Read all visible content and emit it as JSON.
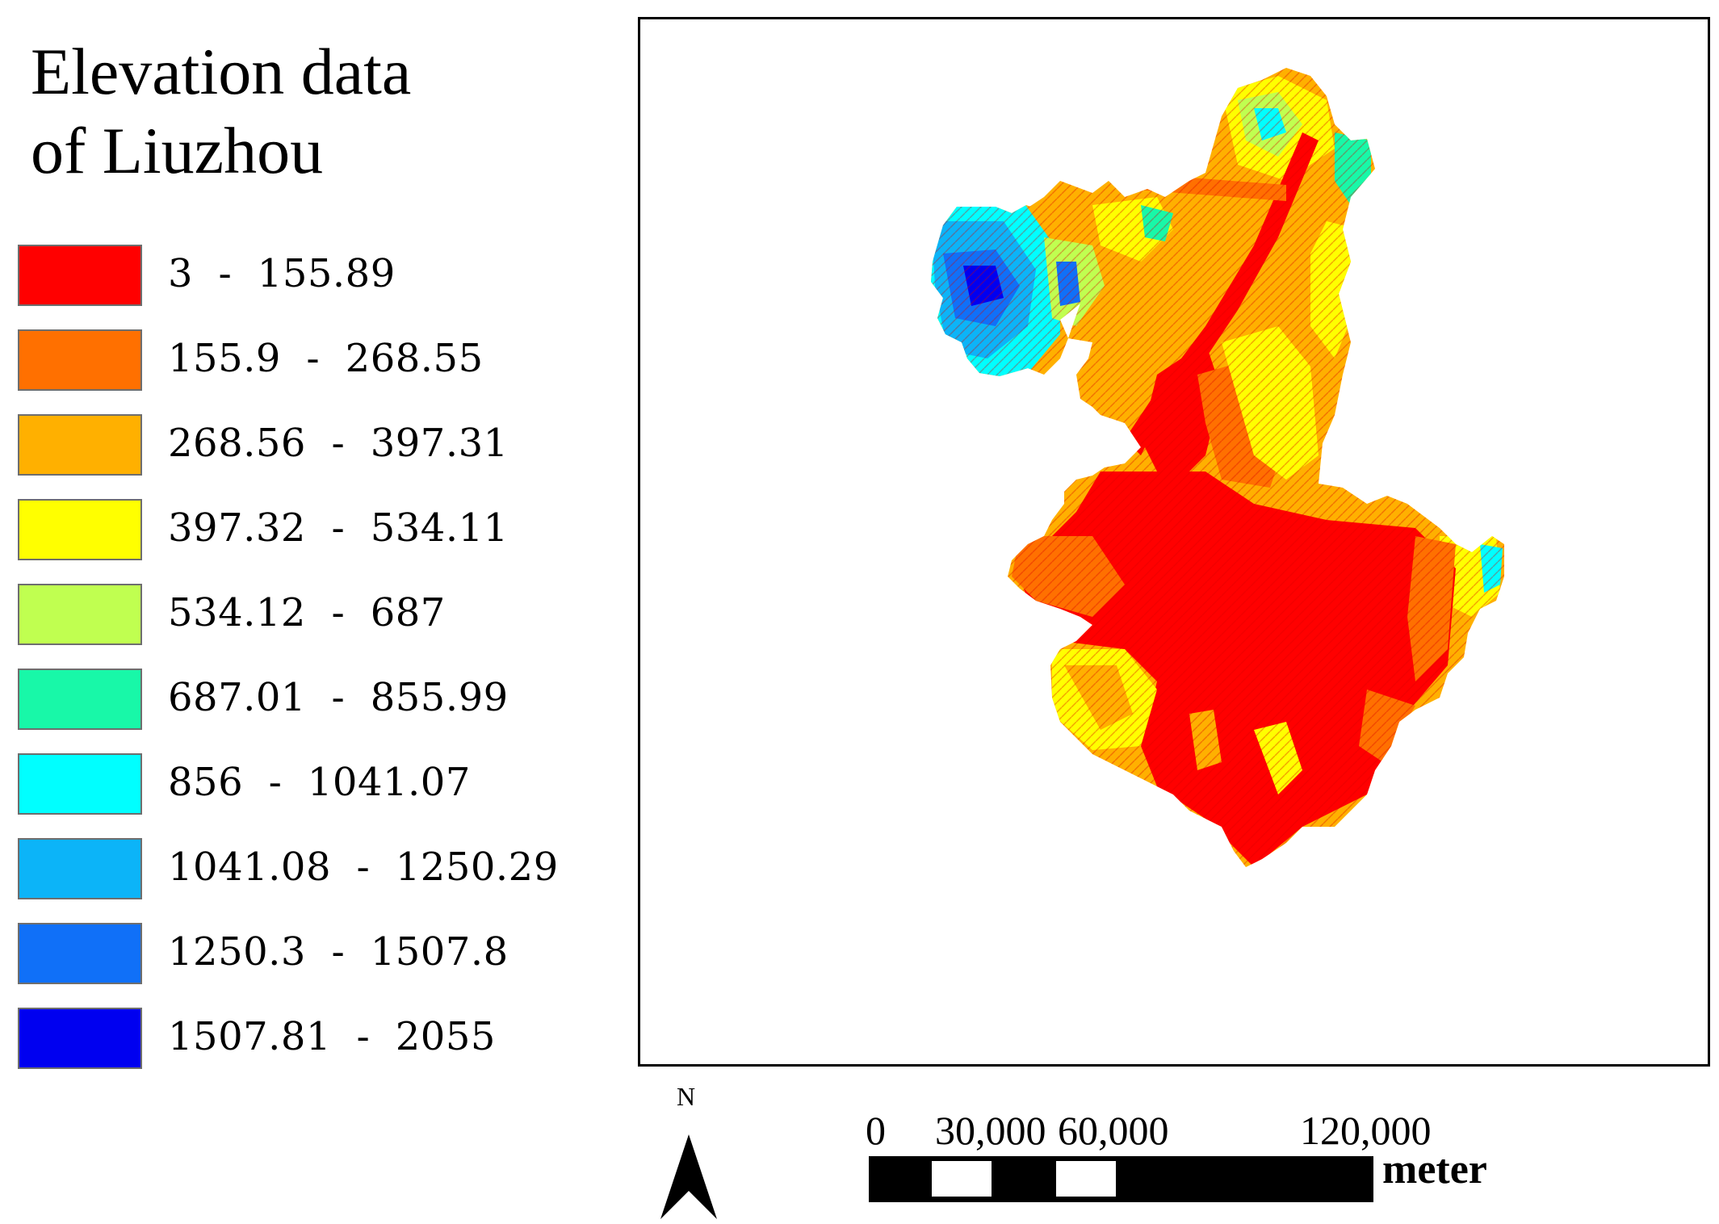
{
  "title": {
    "line1": "Elevation data",
    "line2": "of Liuzhou"
  },
  "legend": {
    "items": [
      {
        "label": "3  -  155.89",
        "color": "#ff0000"
      },
      {
        "label": "155.9  -  268.55",
        "color": "#ff7000"
      },
      {
        "label": "268.56  -  397.31",
        "color": "#ffb000"
      },
      {
        "label": "397.32  -  534.11",
        "color": "#ffff00"
      },
      {
        "label": "534.12  -  687",
        "color": "#c0ff50"
      },
      {
        "label": "687.01  -  855.99",
        "color": "#18f8a8"
      },
      {
        "label": "856  -  1041.07",
        "color": "#00ffff"
      },
      {
        "label": "1041.08  -  1250.29",
        "color": "#0cb4f8"
      },
      {
        "label": "1250.3  -  1507.8",
        "color": "#1070f8"
      },
      {
        "label": "1507.81  -  2055",
        "color": "#0000f0"
      }
    ]
  },
  "north_arrow": {
    "label": "N"
  },
  "scale_bar": {
    "ticks": [
      "0",
      "30,000",
      "60,000",
      "120,000"
    ],
    "unit": "meter"
  }
}
